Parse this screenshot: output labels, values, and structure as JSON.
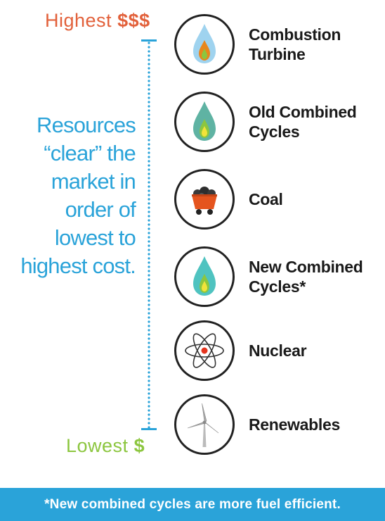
{
  "scale": {
    "top": {
      "word": "Highest",
      "symbol": "$$$"
    },
    "bottom": {
      "word": "Lowest",
      "symbol": "$"
    }
  },
  "explanation_lines": [
    "Resources",
    "“clear” the",
    "market in",
    "order of",
    "lowest to",
    "highest cost."
  ],
  "resources": [
    {
      "lines": [
        "Combustion",
        "Turbine"
      ],
      "icon": "flame-blue-icon"
    },
    {
      "lines": [
        "Old Combined",
        "Cycles"
      ],
      "icon": "flame-teal-icon"
    },
    {
      "lines": [
        "Coal"
      ],
      "icon": "coal-cart-icon"
    },
    {
      "lines": [
        "New Combined",
        "Cycles*"
      ],
      "icon": "flame-teal-icon"
    },
    {
      "lines": [
        "Nuclear"
      ],
      "icon": "atom-icon"
    },
    {
      "lines": [
        "Renewables"
      ],
      "icon": "wind-turbine-icon"
    }
  ],
  "footnote": "*New combined cycles are more fuel efficient.",
  "colors": {
    "accent_blue": "#2aa3d9",
    "highest_orange": "#e2603a",
    "lowest_green": "#8cc63f",
    "coal_orange": "#e5541e",
    "flame_teal": "#5fb3a3"
  }
}
